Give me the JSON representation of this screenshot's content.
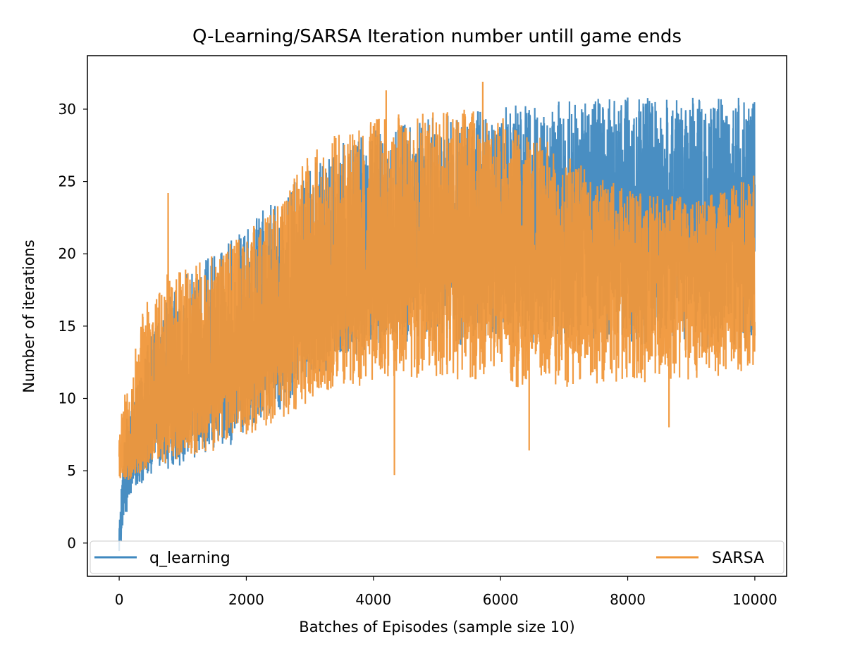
{
  "chart_data": {
    "type": "line",
    "title": "Q-Learning/SARSA Iteration number untill game ends",
    "xlabel": "Batches of Episodes (sample size 10)",
    "ylabel": "Number of iterations",
    "xlim": [
      -500,
      10500
    ],
    "ylim": [
      -2.3,
      33.7
    ],
    "xticks": [
      0,
      2000,
      4000,
      6000,
      8000,
      10000
    ],
    "xtick_labels": [
      "0",
      "2000",
      "4000",
      "6000",
      "8000",
      "10000"
    ],
    "yticks": [
      0,
      5,
      10,
      15,
      20,
      25,
      30
    ],
    "ytick_labels": [
      "0",
      "5",
      "10",
      "15",
      "20",
      "25",
      "30"
    ],
    "grid": false,
    "legend_placement": "bottom (expanded across width)",
    "legend": [
      "q_learning",
      "SARSA"
    ],
    "series": [
      {
        "name": "q_learning",
        "color": "#3f88bf",
        "x": [
          0,
          50,
          100,
          150,
          200,
          300,
          400,
          500,
          700,
          1000,
          1500,
          2000,
          2500,
          3000,
          3500,
          4000,
          4500,
          5000,
          5500,
          6000,
          6500,
          7000,
          7500,
          8000,
          8500,
          9000,
          9500,
          10000
        ],
        "mean": [
          0.3,
          2.5,
          3.8,
          4.8,
          5.5,
          6.5,
          7.4,
          8.0,
          8.9,
          10.0,
          11.4,
          12.6,
          14.2,
          15.8,
          17.0,
          18.3,
          19.1,
          19.8,
          20.3,
          20.8,
          21.2,
          21.5,
          21.8,
          22.0,
          22.2,
          22.4,
          22.5,
          22.6
        ],
        "lower": [
          -0.6,
          0.5,
          1.0,
          2.5,
          3.3,
          3.8,
          4.3,
          4.5,
          4.9,
          5.4,
          6.3,
          7.2,
          9.0,
          11.2,
          12.5,
          13.1,
          13.5,
          13.6,
          13.7,
          13.8,
          13.8,
          13.7,
          13.6,
          13.5,
          13.4,
          13.3,
          13.2,
          13.2
        ],
        "upper": [
          1.4,
          5.0,
          8.5,
          10.0,
          11.0,
          12.0,
          13.0,
          14.5,
          16.5,
          18.5,
          20.0,
          22.0,
          24.0,
          26.3,
          27.8,
          28.5,
          29.0,
          29.5,
          29.8,
          30.2,
          30.4,
          30.6,
          30.8,
          30.8,
          30.8,
          30.8,
          30.8,
          30.8
        ]
      },
      {
        "name": "SARSA",
        "color": "#f0973a",
        "x": [
          0,
          50,
          100,
          150,
          200,
          300,
          400,
          500,
          700,
          1000,
          1500,
          2000,
          2500,
          3000,
          3500,
          4000,
          4500,
          5000,
          5500,
          6000,
          6500,
          7000,
          7500,
          8000,
          8500,
          9000,
          9500,
          10000
        ],
        "mean": [
          5.8,
          6.0,
          6.3,
          6.6,
          6.9,
          7.4,
          7.9,
          8.3,
          9.0,
          10.1,
          11.4,
          12.8,
          14.4,
          15.9,
          17.0,
          18.0,
          18.5,
          18.9,
          19.1,
          19.2,
          19.2,
          19.0,
          18.8,
          18.5,
          18.3,
          18.1,
          18.0,
          18.0
        ],
        "lower": [
          3.8,
          4.0,
          4.1,
          4.3,
          4.5,
          4.6,
          4.8,
          5.0,
          5.3,
          5.8,
          6.3,
          7.0,
          8.0,
          9.5,
          10.5,
          11.0,
          11.3,
          11.2,
          11.0,
          10.8,
          10.7,
          10.7,
          10.8,
          10.9,
          11.1,
          11.3,
          11.6,
          12.0
        ],
        "upper": [
          7.7,
          9.5,
          10.5,
          11.0,
          12.0,
          15.0,
          16.5,
          17.5,
          18.5,
          19.0,
          20.0,
          21.5,
          23.5,
          27.0,
          28.5,
          29.5,
          29.8,
          30.0,
          30.0,
          29.5,
          28.5,
          27.0,
          25.5,
          24.5,
          24.0,
          24.0,
          24.5,
          25.5
        ]
      }
    ],
    "annotations": [
      {
        "series": "SARSA",
        "x": 770,
        "y": 24.2
      },
      {
        "series": "SARSA",
        "x": 4200,
        "y": 31.3
      },
      {
        "series": "SARSA",
        "x": 4330,
        "y": 4.7
      },
      {
        "series": "SARSA",
        "x": 5720,
        "y": 31.9
      },
      {
        "series": "SARSA",
        "x": 6450,
        "y": 6.4
      },
      {
        "series": "SARSA",
        "x": 8650,
        "y": 8.0
      },
      {
        "series": "q_learning",
        "x": 8000,
        "y": 30.8
      }
    ]
  }
}
